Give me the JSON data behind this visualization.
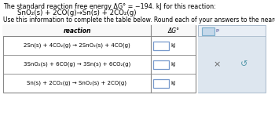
{
  "title_line1": "The standard reaction free energy ΔG° = −194. kJ for this reaction:",
  "reaction_given": "SnO₂(s) + 2CO(g)→Sn(s) + 2CO₂(g)",
  "subtitle": "Use this information to complete the table below. Round each of your answers to the nearest kJ.",
  "col_header_reaction": "reaction",
  "col_header_dg": "ΔG°",
  "rows": [
    "2Sn(s) + 4CO₂(g) → 2SnO₂(s) + 4CO(g)",
    "3SnO₂(s) + 6CO(g) → 3Sn(s) + 6CO₂(g)",
    "Sn(s) + 2CO₂(g) → SnO₂(s) + 2CO(g)"
  ],
  "kj_label": "kJ",
  "bg_color": "#ffffff",
  "table_line_color": "#888888",
  "right_panel_bg": "#e8eef5",
  "right_box_color": "#c5d8ea",
  "right_box_border": "#7aadcc",
  "input_box_border": "#7799cc",
  "x_color": "#666666",
  "refresh_color": "#5599aa"
}
